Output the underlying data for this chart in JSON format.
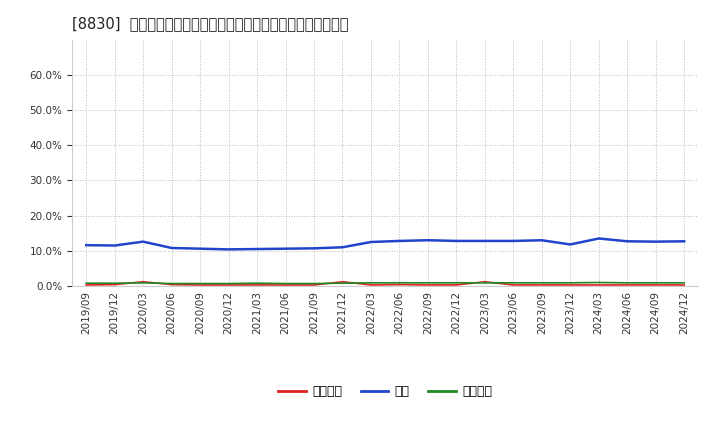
{
  "title": "[8830]  売上債権、在庫、買入債務の総資産に対する比率の推移",
  "x_labels": [
    "2019/09",
    "2019/12",
    "2020/03",
    "2020/06",
    "2020/09",
    "2020/12",
    "2021/03",
    "2021/06",
    "2021/09",
    "2021/12",
    "2022/03",
    "2022/06",
    "2022/09",
    "2022/12",
    "2023/03",
    "2023/06",
    "2023/09",
    "2023/12",
    "2024/03",
    "2024/06",
    "2024/09",
    "2024/12"
  ],
  "receivables": [
    0.003,
    0.004,
    0.012,
    0.004,
    0.003,
    0.003,
    0.003,
    0.003,
    0.003,
    0.012,
    0.003,
    0.004,
    0.003,
    0.003,
    0.012,
    0.003,
    0.003,
    0.003,
    0.003,
    0.003,
    0.003,
    0.003
  ],
  "inventory": [
    0.116,
    0.115,
    0.126,
    0.108,
    0.106,
    0.104,
    0.105,
    0.106,
    0.107,
    0.11,
    0.125,
    0.128,
    0.13,
    0.128,
    0.128,
    0.128,
    0.13,
    0.118,
    0.135,
    0.127,
    0.126,
    0.127
  ],
  "payables": [
    0.008,
    0.008,
    0.009,
    0.007,
    0.007,
    0.007,
    0.008,
    0.007,
    0.007,
    0.008,
    0.009,
    0.009,
    0.009,
    0.009,
    0.009,
    0.009,
    0.009,
    0.009,
    0.01,
    0.009,
    0.009,
    0.009
  ],
  "receivables_color": "#dd2222",
  "inventory_color": "#2244cc",
  "payables_color": "#228822",
  "legend_label_receivables": "売上債権",
  "legend_label_inventory": "在庫",
  "legend_label_payables": "買入債務",
  "ylim_min": 0.0,
  "ylim_max": 0.7,
  "yticks": [
    0.0,
    0.1,
    0.2,
    0.3,
    0.4,
    0.5,
    0.6
  ],
  "background_color": "#ffffff",
  "grid_color": "#bbbbbb",
  "title_fontsize": 10.5,
  "tick_fontsize": 7.5,
  "legend_fontsize": 9
}
